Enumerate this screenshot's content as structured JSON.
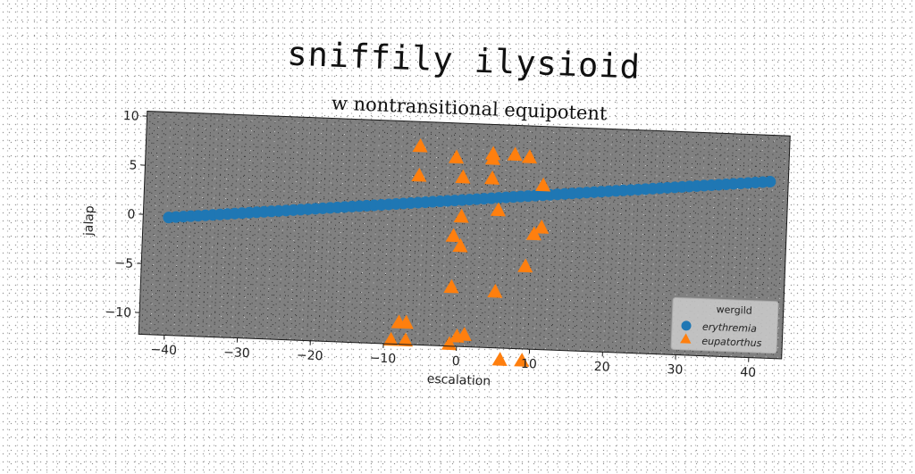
{
  "figure": {
    "suptitle": "sniffily ilysioid"
  },
  "chart_data": {
    "type": "scatter",
    "title": "w nontransitional equipotent",
    "xlabel": "escalation",
    "ylabel": "jalap",
    "xlim": [
      -43.5,
      44.5
    ],
    "ylim": [
      -12.2,
      10.5
    ],
    "xticks": [
      -40,
      -30,
      -20,
      -10,
      0,
      10,
      20,
      30,
      40
    ],
    "yticks": [
      -10,
      -5,
      0,
      5,
      10
    ],
    "grid": false,
    "background_color": "#808080",
    "legend": {
      "title": "wergild",
      "location": "lower-right"
    },
    "series": [
      {
        "name": "erythremia",
        "marker": "circle",
        "color": "#1f77b4",
        "x": [
          -40,
          -39,
          -38,
          -37,
          -36,
          -35,
          -34,
          -33,
          -32,
          -31,
          -30,
          -29,
          -28,
          -27,
          -26,
          -25,
          -24,
          -23,
          -22,
          -21,
          -20,
          -19,
          -18,
          -17,
          -16,
          -15,
          -14,
          -13,
          -12,
          -11,
          -10,
          -9,
          -8,
          -7,
          -6,
          -5,
          -4,
          -3,
          -2,
          -1,
          0,
          1,
          2,
          3,
          4,
          5,
          6,
          7,
          8,
          9,
          10,
          11,
          12,
          13,
          14,
          15,
          16,
          17,
          18,
          19,
          20,
          21,
          22,
          23,
          24,
          25,
          26,
          27,
          28,
          29,
          30,
          31,
          32,
          33,
          34,
          35,
          36,
          37,
          38,
          39,
          40,
          41,
          42
        ],
        "slope": 0.073,
        "intercept": 2.7
      },
      {
        "name": "eupatorthus",
        "marker": "triangle",
        "color": "#ff7f0e",
        "x": [
          -6,
          -6,
          -1,
          0,
          4,
          4,
          4,
          7,
          9,
          11,
          0,
          5,
          11,
          10,
          -1,
          0,
          9,
          -1,
          5,
          -8,
          -7,
          -9,
          -7,
          -1,
          0,
          1,
          6,
          9
        ],
        "y": [
          8,
          5,
          7,
          5,
          7.5,
          7,
          5,
          7.5,
          7.3,
          4.5,
          1,
          1.8,
          0.2,
          -0.5,
          -1,
          -2,
          -3.8,
          -6.2,
          -6.5,
          -10,
          -10,
          -11.8,
          -11.8,
          -12,
          -11.2,
          -11,
          -13.4,
          -13.4
        ]
      }
    ]
  }
}
